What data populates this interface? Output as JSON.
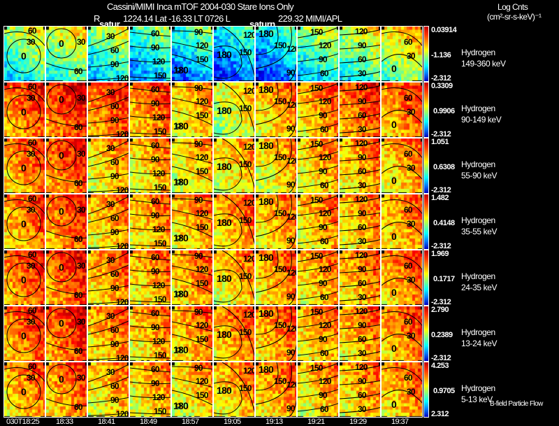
{
  "chart_data": {
    "type": "heatmap",
    "title": "Cassini/MIMI Inca mTOF  2004-030   Stare   Ions Only",
    "subtitle": {
      "r_label": "R",
      "position": "1224.14 Lat -16.33 LT 0726 L",
      "l_value": "229.32  MIMI/APL"
    },
    "colorbar_title": "Log Cnts",
    "colorbar_units": "(cm²-sr-s-keV)⁻¹",
    "saturn_labels": [
      "satur",
      "saturn"
    ],
    "times": [
      "030T18:25",
      "18:33",
      "18:41",
      "18:49",
      "18:57",
      "19:05",
      "19:13",
      "19:21",
      "19:29",
      "19:37"
    ],
    "rows": [
      {
        "species": "Hydrogen",
        "energy": "149-360 keV",
        "max": "0.03914",
        "mid": "-1.136",
        "min": "-2.312",
        "levels": [
          0.48,
          0.52,
          0.45,
          0.38,
          0.35,
          0.3,
          0.3,
          0.45,
          0.5,
          0.58
        ]
      },
      {
        "species": "Hydrogen",
        "energy": "90-149 keV",
        "max": "0.3309",
        "mid": "0.9906",
        "min": "-2.312",
        "levels": [
          0.78,
          0.82,
          0.78,
          0.75,
          0.68,
          0.6,
          0.7,
          0.72,
          0.78,
          0.75
        ]
      },
      {
        "species": "Hydrogen",
        "energy": "55-90 keV",
        "max": "1.051",
        "mid": "0.6308",
        "min": "-2.312",
        "levels": [
          0.75,
          0.8,
          0.68,
          0.68,
          0.65,
          0.66,
          0.66,
          0.68,
          0.7,
          0.7
        ]
      },
      {
        "species": "Hydrogen",
        "energy": "35-55 keV",
        "max": "1.482",
        "mid": "0.4148",
        "min": "-2.312",
        "levels": [
          0.75,
          0.78,
          0.7,
          0.7,
          0.7,
          0.72,
          0.7,
          0.7,
          0.7,
          0.72
        ]
      },
      {
        "species": "Hydrogen",
        "energy": "24-35 keV",
        "max": "1.969",
        "mid": "0.1717",
        "min": "-2.312",
        "levels": [
          0.78,
          0.8,
          0.72,
          0.7,
          0.72,
          0.68,
          0.72,
          0.7,
          0.72,
          0.74
        ]
      },
      {
        "species": "Hydrogen",
        "energy": "13-24 keV",
        "max": "2.790",
        "mid": "0.2389",
        "min": "-2.312",
        "levels": [
          0.78,
          0.8,
          0.72,
          0.7,
          0.72,
          0.74,
          0.74,
          0.7,
          0.72,
          0.75
        ]
      },
      {
        "species": "Hydrogen",
        "energy": "5-13 keV",
        "max": "4.253",
        "mid": "0.9705",
        "min": "2.312",
        "levels": [
          0.72,
          0.75,
          0.68,
          0.68,
          0.66,
          0.7,
          0.72,
          0.68,
          0.7,
          0.72
        ]
      }
    ],
    "contour_labels": [
      [
        "60",
        "30",
        "0"
      ],
      [
        "30",
        "60",
        "0"
      ],
      [
        "30",
        "60",
        "90",
        "120"
      ],
      [
        "60",
        "90",
        "120",
        "150"
      ],
      [
        "90",
        "120",
        "150",
        "180"
      ],
      [
        "120",
        "150",
        "180"
      ],
      [
        "180",
        "150",
        "120",
        "90"
      ],
      [
        "150",
        "120",
        "90",
        "60"
      ],
      [
        "120",
        "90",
        "60",
        "30"
      ],
      [
        "60",
        "30",
        "0"
      ]
    ],
    "legend_note": "B-field Particle Flow"
  }
}
